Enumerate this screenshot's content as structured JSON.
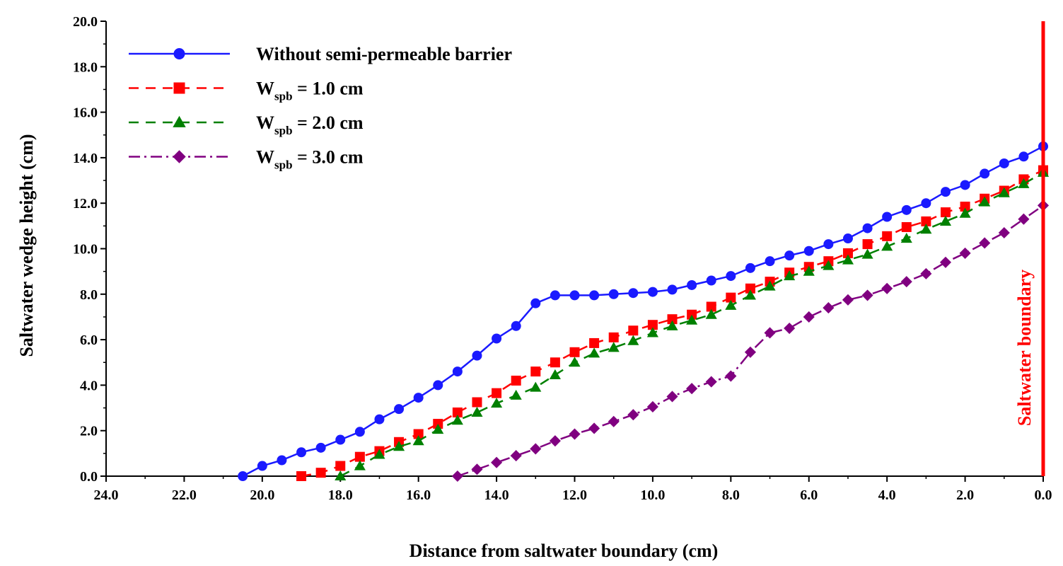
{
  "chart_data": {
    "type": "line",
    "title": "",
    "xlabel": "Distance from saltwater boundary (cm)",
    "ylabel": "Saltwater wedge height (cm)",
    "xlim": [
      24.0,
      0.0
    ],
    "ylim": [
      0.0,
      20.0
    ],
    "x_reversed": true,
    "x_ticks": [
      "24.0",
      "22.0",
      "20.0",
      "18.0",
      "16.0",
      "14.0",
      "12.0",
      "10.0",
      "8.0",
      "6.0",
      "4.0",
      "2.0",
      "0.0"
    ],
    "y_ticks": [
      "0.0",
      "2.0",
      "4.0",
      "6.0",
      "8.0",
      "10.0",
      "12.0",
      "14.0",
      "16.0",
      "18.0",
      "20.0"
    ],
    "grid": false,
    "legend_position": "top-left",
    "annotation": {
      "text": "Saltwater boundary",
      "x": 0.0,
      "color": "#ff0000"
    },
    "series": [
      {
        "label_main": "Without semi-permeable barrier",
        "label_sub": "",
        "label_tail": "",
        "color": "#1a1aff",
        "marker": "circle",
        "line_style": "solid",
        "points": [
          [
            20.5,
            0.0
          ],
          [
            20.0,
            0.45
          ],
          [
            19.5,
            0.7
          ],
          [
            19.0,
            1.05
          ],
          [
            18.5,
            1.25
          ],
          [
            18.0,
            1.6
          ],
          [
            17.5,
            1.95
          ],
          [
            17.0,
            2.5
          ],
          [
            16.5,
            2.95
          ],
          [
            16.0,
            3.45
          ],
          [
            15.5,
            4.0
          ],
          [
            15.0,
            4.6
          ],
          [
            14.5,
            5.3
          ],
          [
            14.0,
            6.05
          ],
          [
            13.5,
            6.6
          ],
          [
            13.0,
            7.6
          ],
          [
            12.5,
            7.95
          ],
          [
            12.0,
            7.95
          ],
          [
            11.5,
            7.95
          ],
          [
            11.0,
            8.0
          ],
          [
            10.5,
            8.05
          ],
          [
            10.0,
            8.1
          ],
          [
            9.5,
            8.2
          ],
          [
            9.0,
            8.4
          ],
          [
            8.5,
            8.6
          ],
          [
            8.0,
            8.8
          ],
          [
            7.5,
            9.15
          ],
          [
            7.0,
            9.45
          ],
          [
            6.5,
            9.7
          ],
          [
            6.0,
            9.9
          ],
          [
            5.5,
            10.2
          ],
          [
            5.0,
            10.45
          ],
          [
            4.5,
            10.9
          ],
          [
            4.0,
            11.4
          ],
          [
            3.5,
            11.7
          ],
          [
            3.0,
            12.0
          ],
          [
            2.5,
            12.5
          ],
          [
            2.0,
            12.8
          ],
          [
            1.5,
            13.3
          ],
          [
            1.0,
            13.75
          ],
          [
            0.5,
            14.05
          ],
          [
            0.0,
            14.5
          ]
        ]
      },
      {
        "label_main": "W",
        "label_sub": "spb",
        "label_tail": " = 1.0 cm",
        "color": "#ff0000",
        "marker": "square",
        "line_style": "dashed",
        "points": [
          [
            19.0,
            0.0
          ],
          [
            18.5,
            0.15
          ],
          [
            18.0,
            0.45
          ],
          [
            17.5,
            0.85
          ],
          [
            17.0,
            1.1
          ],
          [
            16.5,
            1.5
          ],
          [
            16.0,
            1.85
          ],
          [
            15.5,
            2.3
          ],
          [
            15.0,
            2.8
          ],
          [
            14.5,
            3.25
          ],
          [
            14.0,
            3.65
          ],
          [
            13.5,
            4.2
          ],
          [
            13.0,
            4.6
          ],
          [
            12.5,
            5.0
          ],
          [
            12.0,
            5.45
          ],
          [
            11.5,
            5.85
          ],
          [
            11.0,
            6.1
          ],
          [
            10.5,
            6.4
          ],
          [
            10.0,
            6.65
          ],
          [
            9.5,
            6.9
          ],
          [
            9.0,
            7.1
          ],
          [
            8.5,
            7.45
          ],
          [
            8.0,
            7.85
          ],
          [
            7.5,
            8.25
          ],
          [
            7.0,
            8.55
          ],
          [
            6.5,
            8.95
          ],
          [
            6.0,
            9.2
          ],
          [
            5.5,
            9.45
          ],
          [
            5.0,
            9.8
          ],
          [
            4.5,
            10.2
          ],
          [
            4.0,
            10.55
          ],
          [
            3.5,
            10.95
          ],
          [
            3.0,
            11.2
          ],
          [
            2.5,
            11.6
          ],
          [
            2.0,
            11.85
          ],
          [
            1.5,
            12.2
          ],
          [
            1.0,
            12.55
          ],
          [
            0.5,
            13.05
          ],
          [
            0.0,
            13.45
          ]
        ]
      },
      {
        "label_main": "W",
        "label_sub": "spb",
        "label_tail": " = 2.0 cm",
        "color": "#008000",
        "marker": "triangle",
        "line_style": "dashed",
        "points": [
          [
            18.0,
            0.0
          ],
          [
            17.5,
            0.45
          ],
          [
            17.0,
            0.95
          ],
          [
            16.5,
            1.3
          ],
          [
            16.0,
            1.55
          ],
          [
            15.5,
            2.05
          ],
          [
            15.0,
            2.45
          ],
          [
            14.5,
            2.8
          ],
          [
            14.0,
            3.2
          ],
          [
            13.5,
            3.55
          ],
          [
            13.0,
            3.9
          ],
          [
            12.5,
            4.45
          ],
          [
            12.0,
            5.0
          ],
          [
            11.5,
            5.4
          ],
          [
            11.0,
            5.65
          ],
          [
            10.5,
            5.95
          ],
          [
            10.0,
            6.3
          ],
          [
            9.5,
            6.6
          ],
          [
            9.0,
            6.85
          ],
          [
            8.5,
            7.1
          ],
          [
            8.0,
            7.5
          ],
          [
            7.5,
            7.95
          ],
          [
            7.0,
            8.35
          ],
          [
            6.5,
            8.8
          ],
          [
            6.0,
            9.0
          ],
          [
            5.5,
            9.25
          ],
          [
            5.0,
            9.5
          ],
          [
            4.5,
            9.75
          ],
          [
            4.0,
            10.1
          ],
          [
            3.5,
            10.45
          ],
          [
            3.0,
            10.85
          ],
          [
            2.5,
            11.2
          ],
          [
            2.0,
            11.55
          ],
          [
            1.5,
            12.05
          ],
          [
            1.0,
            12.45
          ],
          [
            0.5,
            12.85
          ],
          [
            0.0,
            13.35
          ]
        ]
      },
      {
        "label_main": "W",
        "label_sub": "spb",
        "label_tail": " = 3.0 cm",
        "color": "#800080",
        "marker": "diamond",
        "line_style": "dashdot",
        "points": [
          [
            15.0,
            0.0
          ],
          [
            14.5,
            0.3
          ],
          [
            14.0,
            0.6
          ],
          [
            13.5,
            0.9
          ],
          [
            13.0,
            1.2
          ],
          [
            12.5,
            1.55
          ],
          [
            12.0,
            1.85
          ],
          [
            11.5,
            2.1
          ],
          [
            11.0,
            2.4
          ],
          [
            10.5,
            2.7
          ],
          [
            10.0,
            3.05
          ],
          [
            9.5,
            3.5
          ],
          [
            9.0,
            3.85
          ],
          [
            8.5,
            4.15
          ],
          [
            8.0,
            4.4
          ],
          [
            7.5,
            5.45
          ],
          [
            7.0,
            6.3
          ],
          [
            6.5,
            6.5
          ],
          [
            6.0,
            7.0
          ],
          [
            5.5,
            7.4
          ],
          [
            5.0,
            7.75
          ],
          [
            4.5,
            7.95
          ],
          [
            4.0,
            8.25
          ],
          [
            3.5,
            8.55
          ],
          [
            3.0,
            8.9
          ],
          [
            2.5,
            9.4
          ],
          [
            2.0,
            9.8
          ],
          [
            1.5,
            10.25
          ],
          [
            1.0,
            10.7
          ],
          [
            0.5,
            11.3
          ],
          [
            0.0,
            11.9
          ]
        ]
      }
    ]
  }
}
